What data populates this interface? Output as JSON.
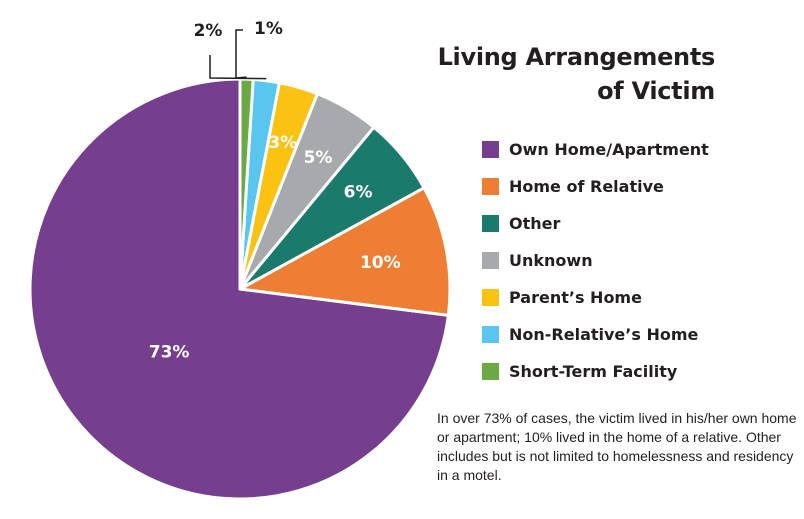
{
  "chart_data": {
    "type": "pie",
    "title_lines": [
      "Living Arrangements",
      "of Victim"
    ],
    "categories": [
      "Own Home/Apartment",
      "Home of Relative",
      "Other",
      "Unknown",
      "Parent’s Home",
      "Non-Relative’s Home",
      "Short-Term Facility"
    ],
    "values": [
      73,
      10,
      6,
      5,
      3,
      2,
      1
    ],
    "labels": [
      "73%",
      "10%",
      "6%",
      "5%",
      "3%",
      "2%",
      "1%"
    ],
    "colors": [
      "#753e8e",
      "#ee7e34",
      "#1a7a6c",
      "#a8a9ac",
      "#fcc212",
      "#58c6ee",
      "#6aa944"
    ],
    "legend_position": "right",
    "start": "top",
    "direction": "counterclockwise"
  },
  "note": "In over 73% of cases, the victim lived in his/her own home or apartment; 10% lived in the home of a relative. Other includes but is not limited to homelessness and residency in a motel."
}
